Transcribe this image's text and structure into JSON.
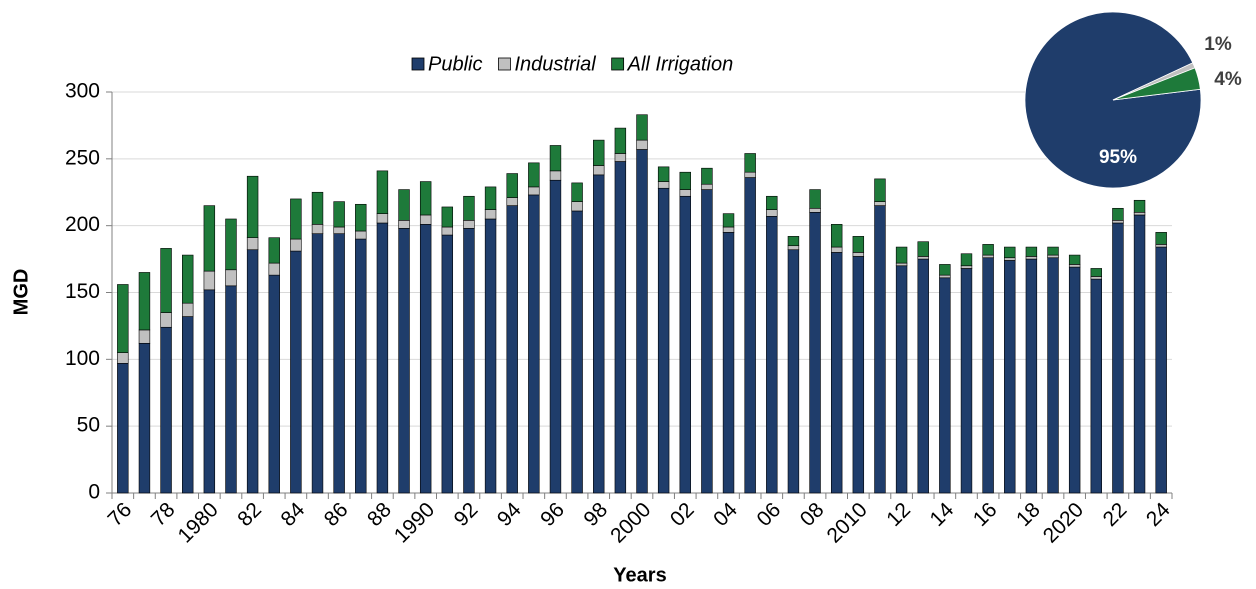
{
  "chart_data": [
    {
      "type": "bar",
      "stacked": true,
      "xlabel": "Years",
      "ylabel": "MGD",
      "categories": [
        "76",
        null,
        "78",
        null,
        "1980",
        null,
        "82",
        null,
        "84",
        null,
        "86",
        null,
        "88",
        null,
        "1990",
        null,
        "92",
        null,
        "94",
        null,
        "96",
        null,
        "98",
        null,
        "2000",
        null,
        "02",
        null,
        "04",
        null,
        "06",
        null,
        "08",
        null,
        "2010",
        null,
        "12",
        null,
        "14",
        null,
        "16",
        null,
        "18",
        null,
        "2020",
        null,
        "22",
        null,
        "24"
      ],
      "series": [
        {
          "name": "Public",
          "color": "#1f3d6b",
          "values": [
            97,
            112,
            124,
            132,
            152,
            155,
            182,
            163,
            181,
            194,
            194,
            190,
            202,
            198,
            201,
            193,
            198,
            205,
            215,
            223,
            234,
            211,
            238,
            248,
            257,
            228,
            222,
            227,
            195,
            236,
            207,
            182,
            210,
            180,
            177,
            215,
            170,
            175,
            161,
            168,
            176,
            174,
            175,
            176,
            169,
            160,
            202,
            208,
            184
          ]
        },
        {
          "name": "Industrial",
          "color": "#c0c0c0",
          "values": [
            8,
            10,
            11,
            10,
            14,
            12,
            9,
            9,
            9,
            7,
            5,
            6,
            7,
            6,
            7,
            6,
            6,
            7,
            6,
            6,
            7,
            7,
            7,
            6,
            7,
            5,
            5,
            4,
            4,
            4,
            5,
            3,
            3,
            4,
            3,
            3,
            2,
            2,
            2,
            2,
            2,
            2,
            2,
            2,
            2,
            2,
            2,
            2,
            2
          ]
        },
        {
          "name": "All Irrigation",
          "color": "#1e7a3a",
          "values": [
            51,
            43,
            48,
            36,
            49,
            38,
            46,
            19,
            30,
            24,
            19,
            20,
            32,
            23,
            25,
            15,
            18,
            17,
            18,
            18,
            19,
            14,
            19,
            19,
            19,
            11,
            13,
            12,
            10,
            14,
            10,
            7,
            14,
            17,
            12,
            17,
            12,
            11,
            8,
            9,
            8,
            8,
            7,
            6,
            7,
            6,
            9,
            9,
            9
          ]
        }
      ],
      "ylim": [
        0,
        300
      ],
      "yticks": [
        0,
        50,
        100,
        150,
        200,
        250,
        300
      ],
      "grid": true,
      "legend": "top"
    },
    {
      "type": "pie",
      "values": [
        95,
        1,
        4
      ],
      "value_labels": [
        "95%",
        "1%",
        "4%"
      ],
      "colors": [
        "#1f3d6b",
        "#c0c0c0",
        "#1e7a3a"
      ]
    }
  ]
}
